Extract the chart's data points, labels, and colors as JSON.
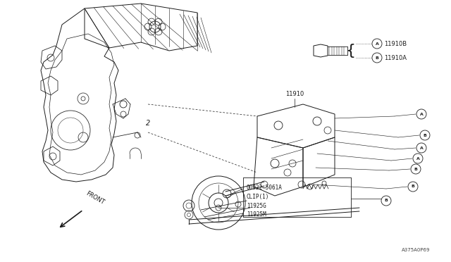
{
  "bg_color": "#ffffff",
  "line_color": "#1a1a1a",
  "gray_color": "#888888",
  "diagram_code": "A375A0P69",
  "bolt_label_A": "A",
  "bolt_label_B": "B",
  "part_11910B": "11910B",
  "part_11910A": "11910A",
  "part_11910": "11910",
  "part_009225061A": "00922-5061A",
  "part_clip": "CLIP(1)",
  "part_11925G": "11925G",
  "part_11925M": "11925M",
  "front_text": "FRONT"
}
